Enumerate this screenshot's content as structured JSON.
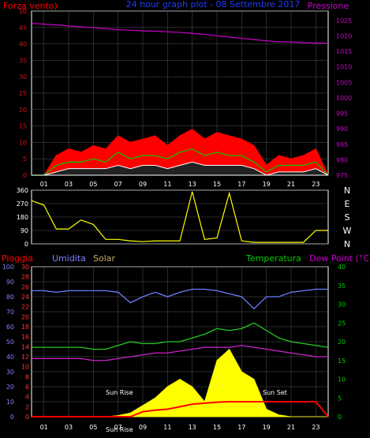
{
  "header": {
    "left_label": "Forza vento)",
    "center_title": "24 hour graph plot - 08 Settembre 2017",
    "right_label": "Pressione"
  },
  "colors": {
    "background": "#000000",
    "axis": "#ffffff",
    "grid": "#555555",
    "wind_max": "#ff0000",
    "wind_avg": "#00cc00",
    "wind_min": "#ffffff",
    "pressure": "#cc00cc",
    "direction": "#ffff00",
    "humidity": "#6b7cff",
    "temperature": "#22cc22",
    "dewpoint": "#cc22cc",
    "rain": "#ff0000",
    "solar": "#ffff00",
    "solar_label": "#c8b070",
    "left_axis_red": "#ff0000",
    "rain_axis_red": "#ff3333",
    "humidity_axis": "#8080ff",
    "temp_axis": "#00cc00",
    "pressure_axis": "#cc00cc"
  },
  "chart_data": [
    {
      "type": "line",
      "title": "24 hour graph plot - 08 Settembre 2017",
      "ylabel_left": "Forza vento)",
      "ylabel_right": "Pressione",
      "x_ticks": [
        "01",
        "03",
        "05",
        "07",
        "09",
        "11",
        "13",
        "15",
        "17",
        "19",
        "21",
        "23"
      ],
      "y_left_ticks": [
        0,
        5,
        10,
        15,
        20,
        25,
        30,
        35,
        40,
        45,
        50
      ],
      "y_right_ticks": [
        975,
        980,
        985,
        990,
        995,
        1000,
        1005,
        1010,
        1015,
        1020,
        1025
      ],
      "ylim_left": [
        0,
        50
      ],
      "ylim_right": [
        975,
        1028
      ],
      "hours": [
        0,
        1,
        2,
        3,
        4,
        5,
        6,
        7,
        8,
        9,
        10,
        11,
        12,
        13,
        14,
        15,
        16,
        17,
        18,
        19,
        20,
        21,
        22,
        23,
        24
      ],
      "series": [
        {
          "name": "Pressione",
          "axis": "right",
          "values": [
            1024,
            1023.8,
            1023.5,
            1023.2,
            1022.9,
            1022.6,
            1022.3,
            1022,
            1021.8,
            1021.6,
            1021.5,
            1021.3,
            1021.1,
            1020.8,
            1020.5,
            1020,
            1019.6,
            1019.2,
            1018.8,
            1018.4,
            1018.1,
            1018,
            1017.8,
            1017.7,
            1017.6
          ]
        },
        {
          "name": "max",
          "axis": "left",
          "values": [
            0,
            0,
            6,
            8,
            7,
            9,
            8,
            12,
            10,
            11,
            12,
            9,
            12,
            14,
            11,
            13,
            12,
            11,
            9,
            3,
            6,
            5,
            6,
            8,
            0
          ]
        },
        {
          "name": "avg",
          "axis": "left",
          "values": [
            0,
            0,
            3,
            4,
            4,
            5,
            4,
            7,
            5,
            6,
            6,
            5,
            7,
            8,
            6,
            7,
            6,
            6,
            4,
            1,
            3,
            3,
            3,
            4,
            0
          ]
        },
        {
          "name": "min",
          "axis": "left",
          "values": [
            0,
            0,
            1,
            2,
            2,
            2,
            2,
            3,
            2,
            3,
            3,
            2,
            3,
            4,
            3,
            3,
            3,
            3,
            2,
            0,
            1,
            1,
            1,
            2,
            0
          ]
        }
      ]
    },
    {
      "type": "line",
      "y_left_ticks": [
        0,
        90,
        180,
        270,
        360
      ],
      "y_right_labels": [
        "N",
        "W",
        "S",
        "E",
        "N"
      ],
      "ylim": [
        0,
        360
      ],
      "series": [
        {
          "name": "Direzione",
          "values": [
            290,
            260,
            100,
            100,
            160,
            130,
            30,
            30,
            20,
            15,
            20,
            20,
            20,
            350,
            30,
            40,
            340,
            20,
            10,
            10,
            10,
            10,
            10,
            90,
            90
          ]
        }
      ]
    },
    {
      "type": "line",
      "legend": [
        "Pioggia",
        "Umidita",
        "Solar",
        "Temperatura",
        "Dew Point (°C)"
      ],
      "y_rain_ticks": [
        0,
        2,
        4,
        6,
        8,
        10,
        12,
        14,
        16,
        18,
        20,
        22,
        24,
        26,
        28,
        30
      ],
      "y_humidity_ticks": [
        0,
        10,
        20,
        30,
        40,
        50,
        60,
        70,
        80,
        90,
        100
      ],
      "y_temp_ticks": [
        0,
        5,
        10,
        15,
        20,
        25,
        30,
        35,
        40
      ],
      "ylim_temp": [
        0,
        40
      ],
      "ylim_humidity": [
        0,
        100
      ],
      "ylim_rain": [
        0,
        30
      ],
      "x_ticks": [
        "01",
        "03",
        "05",
        "07",
        "09",
        "11",
        "13",
        "15",
        "17",
        "19",
        "21",
        "23"
      ],
      "annotations": [
        "Sun Rise",
        "Sun Set",
        "Sun Rise"
      ],
      "series": [
        {
          "name": "Umidita",
          "values": [
            84,
            84,
            83,
            84,
            84,
            84,
            84,
            83,
            76,
            80,
            83,
            80,
            83,
            85,
            85,
            84,
            82,
            80,
            72,
            80,
            80,
            83,
            84,
            85,
            85
          ]
        },
        {
          "name": "Temperatura",
          "values": [
            18.5,
            18.5,
            18.5,
            18.5,
            18.5,
            18,
            18,
            19,
            20,
            19.5,
            19.5,
            20,
            20,
            21,
            22,
            23.5,
            23,
            23.5,
            25,
            23,
            21,
            20,
            19.5,
            19,
            18.5
          ]
        },
        {
          "name": "Dew Point (°C)",
          "values": [
            15.5,
            15.5,
            15.5,
            15.5,
            15.5,
            15,
            15,
            15.5,
            16,
            16.5,
            17,
            17,
            17.5,
            18,
            18.5,
            18.5,
            18.5,
            19,
            18.5,
            18,
            17.5,
            17,
            16.5,
            16,
            16
          ]
        },
        {
          "name": "Pioggia",
          "values": [
            0,
            0,
            0,
            0,
            0,
            0,
            0,
            0,
            0,
            1,
            1.3,
            1.5,
            2,
            2.5,
            2.7,
            2.9,
            3,
            3,
            3,
            3,
            3,
            3,
            3,
            3,
            0
          ]
        },
        {
          "name": "Solar",
          "values": [
            0,
            0,
            0,
            0,
            0,
            0,
            0,
            0.3,
            1,
            3,
            5,
            8,
            10,
            8,
            4,
            15,
            18,
            12,
            10,
            2,
            0.5,
            0,
            0,
            0,
            0
          ]
        }
      ]
    }
  ]
}
